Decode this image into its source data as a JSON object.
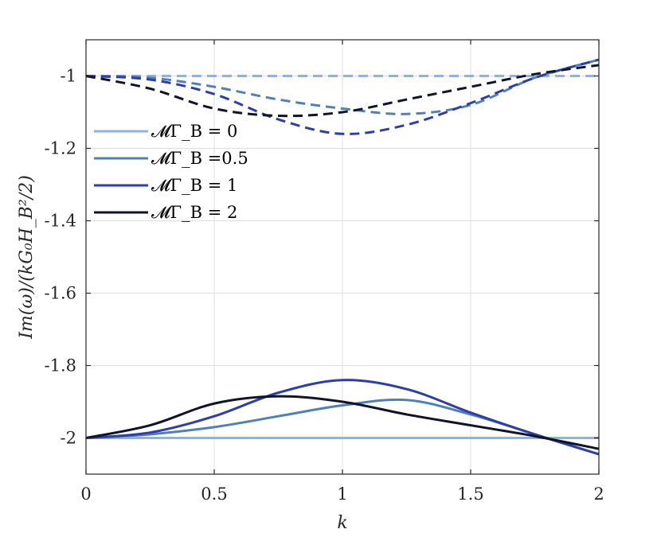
{
  "chart_data": {
    "type": "line",
    "xlabel": "k",
    "ylabel": "Im(ω)/(kG₀H_B²/2)",
    "xlim": [
      0,
      2
    ],
    "ylim": [
      -2.1,
      -0.9
    ],
    "xticks": [
      "0",
      "0.5",
      "1",
      "1.5",
      "2"
    ],
    "yticks": [
      "-1",
      "-1.2",
      "-1.4",
      "-1.6",
      "-1.8",
      "-2"
    ],
    "grid": true,
    "legend_position": "top-left",
    "legend": [
      "𝓜Γ_B = 0",
      "𝓜Γ_B =0.5",
      "𝓜Γ_B = 1",
      "𝓜Γ_B = 2"
    ],
    "x": [
      0,
      0.25,
      0.5,
      0.75,
      1,
      1.25,
      1.5,
      1.75,
      2
    ],
    "series": [
      {
        "name": "𝓜Γ_B = 0",
        "color": "#8fb3e0",
        "style": "solid",
        "values": [
          -2.0,
          -2.0,
          -2.0,
          -2.0,
          -2.0,
          -2.0,
          -2.0,
          -2.0,
          -2.0
        ]
      },
      {
        "name": "𝓜Γ_B =0.5",
        "color": "#4f80b8",
        "style": "solid",
        "values": [
          -2.0,
          -1.99,
          -1.97,
          -1.94,
          -1.91,
          -1.895,
          -1.935,
          -1.99,
          -2.045
        ]
      },
      {
        "name": "𝓜Γ_B = 1",
        "color": "#2d3ea8",
        "style": "solid",
        "values": [
          -2.0,
          -1.985,
          -1.94,
          -1.875,
          -1.84,
          -1.865,
          -1.93,
          -1.99,
          -2.045
        ]
      },
      {
        "name": "𝓜Γ_B = 2",
        "color": "#0f1428",
        "style": "solid",
        "values": [
          -2.0,
          -1.965,
          -1.905,
          -1.885,
          -1.9,
          -1.935,
          -1.965,
          -1.995,
          -2.03
        ]
      },
      {
        "name": "",
        "color": "#8fb3e0",
        "style": "dashed",
        "values": [
          -1.0,
          -1.0,
          -1.0,
          -1.0,
          -1.0,
          -1.0,
          -1.0,
          -1.0,
          -1.0
        ]
      },
      {
        "name": "",
        "color": "#4f80b8",
        "style": "dashed",
        "values": [
          -1.0,
          -1.005,
          -1.03,
          -1.065,
          -1.09,
          -1.105,
          -1.08,
          -1.005,
          -0.955
        ]
      },
      {
        "name": "",
        "color": "#2d3ea8",
        "style": "dashed",
        "values": [
          -1.0,
          -1.01,
          -1.05,
          -1.12,
          -1.16,
          -1.135,
          -1.075,
          -1.005,
          -0.955
        ]
      },
      {
        "name": "",
        "color": "#0f1428",
        "style": "dashed",
        "values": [
          -1.0,
          -1.035,
          -1.09,
          -1.11,
          -1.1,
          -1.065,
          -1.03,
          -0.995,
          -0.97
        ]
      }
    ]
  }
}
